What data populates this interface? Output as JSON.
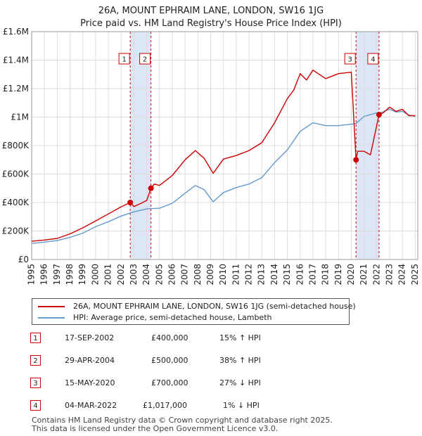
{
  "header": {
    "title": "26A, MOUNT EPHRAIM LANE, LONDON, SW16 1JG",
    "subtitle": "Price paid vs. HM Land Registry's House Price Index (HPI)"
  },
  "legend": {
    "property_label": "26A, MOUNT EPHRAIM LANE, LONDON, SW16 1JG (semi-detached house)",
    "hpi_label": "HPI: Average price, semi-detached house, Lambeth"
  },
  "sales": [
    {
      "num": "1",
      "date": "17-SEP-2002",
      "price": "£400,000",
      "hpi": "15% ↑ HPI"
    },
    {
      "num": "2",
      "date": "29-APR-2004",
      "price": "£500,000",
      "hpi": "38% ↑ HPI"
    },
    {
      "num": "3",
      "date": "15-MAY-2020",
      "price": "£700,000",
      "hpi": "27% ↓ HPI"
    },
    {
      "num": "4",
      "date": "04-MAR-2022",
      "price": "£1,017,000",
      "hpi": "1% ↓ HPI"
    }
  ],
  "footer": {
    "line1": "Contains HM Land Registry data © Crown copyright and database right 2025.",
    "line2": "This data is licensed under the Open Government Licence v3.0."
  },
  "colors": {
    "property": "#cc0000",
    "hpi": "#6699cc",
    "shade": "#dde6f7",
    "grid": "#dddddd"
  },
  "chart_data": {
    "type": "line",
    "title": "26A, MOUNT EPHRAIM LANE, LONDON, SW16 1JG",
    "subtitle": "Price paid vs. HM Land Registry's House Price Index (HPI)",
    "xlabel": "",
    "ylabel": "",
    "xlim": [
      1995,
      2025.2
    ],
    "ylim": [
      0,
      1600000
    ],
    "yticks": [
      0,
      200000,
      400000,
      600000,
      800000,
      1000000,
      1200000,
      1400000,
      1600000
    ],
    "ytick_labels": [
      "£0",
      "£200K",
      "£400K",
      "£600K",
      "£800K",
      "£1M",
      "£1.2M",
      "£1.4M",
      "£1.6M"
    ],
    "xticks": [
      1995,
      1996,
      1997,
      1998,
      1999,
      2000,
      2001,
      2002,
      2003,
      2004,
      2005,
      2006,
      2007,
      2008,
      2009,
      2010,
      2011,
      2012,
      2013,
      2014,
      2015,
      2016,
      2017,
      2018,
      2019,
      2020,
      2021,
      2022,
      2023,
      2024,
      2025
    ],
    "grid": true,
    "legend_position": "below",
    "sale_markers": [
      {
        "label": "1",
        "x": 2002.71,
        "y": 400000
      },
      {
        "label": "2",
        "x": 2004.33,
        "y": 500000
      },
      {
        "label": "3",
        "x": 2020.37,
        "y": 700000
      },
      {
        "label": "4",
        "x": 2022.17,
        "y": 1017000
      }
    ],
    "shaded_ranges": [
      [
        2002.71,
        2004.33
      ],
      [
        2020.37,
        2022.17
      ]
    ],
    "series": [
      {
        "name": "26A, MOUNT EPHRAIM LANE, LONDON, SW16 1JG (semi-detached house)",
        "x": [
          1995,
          1996,
          1997,
          1998,
          1999,
          2000,
          2001,
          2002,
          2002.71,
          2003,
          2003.5,
          2004,
          2004.33,
          2004.6,
          2005,
          2006,
          2007,
          2007.8,
          2008.5,
          2009.2,
          2010,
          2011,
          2012,
          2013,
          2014,
          2015,
          2015.5,
          2016,
          2016.5,
          2017,
          2018,
          2019,
          2020,
          2020.37,
          2020.5,
          2021,
          2021.5,
          2022.17,
          2022.5,
          2023,
          2023.5,
          2024,
          2024.5,
          2025
        ],
        "y": [
          128000,
          137000,
          148000,
          180000,
          222000,
          270000,
          320000,
          370000,
          400000,
          372000,
          392000,
          415000,
          500000,
          530000,
          520000,
          590000,
          700000,
          765000,
          710000,
          605000,
          705000,
          730000,
          765000,
          820000,
          960000,
          1130000,
          1190000,
          1305000,
          1260000,
          1330000,
          1270000,
          1305000,
          1315000,
          700000,
          760000,
          760000,
          735000,
          1017000,
          1030000,
          1070000,
          1040000,
          1055000,
          1010000,
          1010000
        ]
      },
      {
        "name": "HPI: Average price, semi-detached house, Lambeth",
        "x": [
          1995,
          1996,
          1997,
          1998,
          1999,
          2000,
          2001,
          2002,
          2003,
          2004,
          2005,
          2006,
          2007,
          2007.8,
          2008.5,
          2009.2,
          2010,
          2011,
          2012,
          2013,
          2014,
          2015,
          2016,
          2017,
          2018,
          2019,
          2020,
          2020.37,
          2021,
          2022,
          2022.17,
          2023,
          2023.5,
          2024,
          2024.5,
          2025
        ],
        "y": [
          112000,
          122000,
          133000,
          155000,
          185000,
          230000,
          265000,
          305000,
          335000,
          355000,
          360000,
          395000,
          465000,
          520000,
          490000,
          405000,
          470000,
          505000,
          530000,
          575000,
          680000,
          770000,
          900000,
          960000,
          940000,
          940000,
          950000,
          955000,
          1005000,
          1030000,
          1027000,
          1055000,
          1035000,
          1040000,
          1015000,
          1005000
        ]
      }
    ]
  }
}
